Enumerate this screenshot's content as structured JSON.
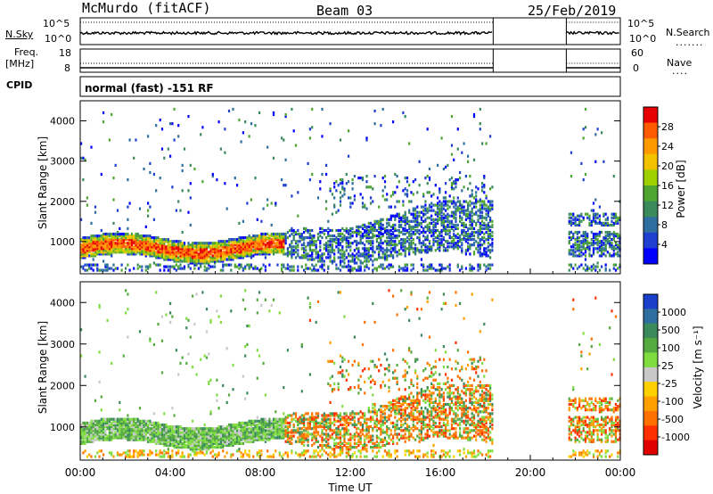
{
  "header": {
    "station": "McMurdo (fitACF)",
    "beam": "Beam 03",
    "date": "25/Feb/2019"
  },
  "status_panel": {
    "nsky_label": "N.Sky",
    "nsky_ticks": [
      "10^5",
      "10^0"
    ],
    "nsearch_label": "N.Search",
    "nsearch_ticks": [
      "10^5",
      "10^0"
    ],
    "freq_label": "Freq.",
    "freq_unit": "[MHz]",
    "freq_ticks": [
      "18",
      "8"
    ],
    "nave_label": "Nave",
    "nave_ticks": [
      "60",
      "0"
    ],
    "cpid_label": "CPID",
    "cpid_value": "normal (fast) -151 RF"
  },
  "chart_data": [
    {
      "type": "heatmap",
      "title": "",
      "ylabel": "Slant Range [km]",
      "xlabel": "",
      "y_ticks": [
        "1000",
        "2000",
        "3000",
        "4000"
      ],
      "ylim": [
        200,
        4500
      ],
      "xlim": [
        0,
        24
      ],
      "colorbar_label": "Power [dB]",
      "colorbar_ticks": [
        "28",
        "24",
        "20",
        "16",
        "12",
        "8",
        "4"
      ],
      "colorbar_colors": [
        "#e60000",
        "#ff5a00",
        "#ff9900",
        "#f2c200",
        "#9fd000",
        "#4ea630",
        "#3a8a5c",
        "#2f6fa0",
        "#1f3fd0",
        "#0000ff"
      ]
    },
    {
      "type": "heatmap",
      "title": "",
      "ylabel": "Slant Range [km]",
      "xlabel": "Time UT",
      "x_ticks": [
        "00:00",
        "04:00",
        "08:00",
        "12:00",
        "16:00",
        "20:00",
        "00:00"
      ],
      "y_ticks": [
        "1000",
        "2000",
        "3000",
        "4000"
      ],
      "ylim": [
        200,
        4500
      ],
      "xlim": [
        0,
        24
      ],
      "colorbar_label": "Velocity [m s⁻¹]",
      "colorbar_ticks": [
        "1000",
        "500",
        "100",
        "25",
        "-25",
        "-100",
        "-500",
        "-1000"
      ],
      "colorbar_colors": [
        "#1a3fc8",
        "#2f6fa0",
        "#3a8a5c",
        "#55aa40",
        "#7fdd40",
        "#c8c8c8",
        "#ffd000",
        "#ffa000",
        "#ff7000",
        "#ff3000",
        "#e00000"
      ]
    }
  ]
}
